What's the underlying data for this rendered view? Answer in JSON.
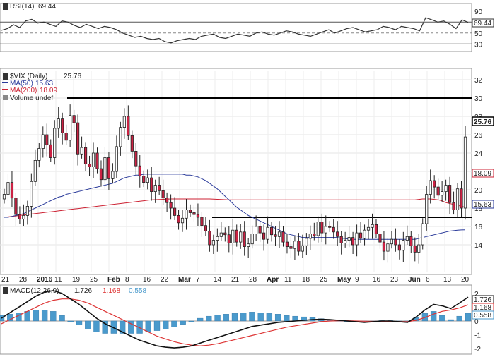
{
  "chart_data": [
    {
      "type": "line",
      "name_label": "RSI(14)",
      "value_label": "69.44",
      "current": 69.44,
      "ylim": [
        20,
        100
      ],
      "ticks": [
        30,
        50,
        70,
        90
      ],
      "reference_levels": [
        30,
        70
      ],
      "values": [
        55,
        58,
        65,
        60,
        72,
        75,
        68,
        70,
        66,
        62,
        72,
        70,
        64,
        60,
        66,
        62,
        58,
        62,
        60,
        56,
        50,
        46,
        42,
        44,
        40,
        38,
        40,
        34,
        32,
        36,
        38,
        40,
        38,
        44,
        46,
        48,
        42,
        40,
        44,
        48,
        46,
        44,
        50,
        52,
        48,
        46,
        50,
        54,
        52,
        48,
        46,
        44,
        48,
        52,
        56,
        50,
        54,
        58,
        60,
        56,
        52,
        54,
        56,
        62,
        60,
        56,
        62,
        60,
        58,
        54,
        78,
        74,
        70,
        72,
        66,
        58,
        74,
        69.44
      ],
      "colors": {
        "line": "#333333",
        "ref": "#555555"
      }
    },
    {
      "type": "candlestick",
      "title": "$VIX (Daily)",
      "title_value": "25.76",
      "ylim": [
        11,
        33
      ],
      "yticks": [
        14,
        16,
        18,
        20,
        22,
        24,
        26,
        28,
        30,
        32
      ],
      "xticks": [
        "21",
        "28",
        "2016",
        "11",
        "19",
        "25",
        "Feb",
        "8",
        "16",
        "22",
        "Mar",
        "7",
        "14",
        "21",
        "28",
        "Apr",
        "11",
        "18",
        "25",
        "May",
        "9",
        "16",
        "23",
        "Jun",
        "6",
        "13",
        "20"
      ],
      "legend": [
        {
          "label": "$VIX (Daily)",
          "value": "25.76",
          "color": "#222222"
        },
        {
          "label": "MA(50)",
          "value": "15.63",
          "color": "#2a3a9a"
        },
        {
          "label": "MA(200)",
          "value": "18.09",
          "color": "#cc2233"
        },
        {
          "label": "Volume undef",
          "value": "",
          "color": "#222222"
        }
      ],
      "last_price": 25.76,
      "last_label": "25.76",
      "ma200_label": "18.09",
      "ma50_label": "15.63",
      "horizontal_lines": [
        30,
        17
      ],
      "closes": [
        19.5,
        20.8,
        19.1,
        17.3,
        16.8,
        17.2,
        18.2,
        20.9,
        23.2,
        24.5,
        26.0,
        24.9,
        23.5,
        26.7,
        27.8,
        26.2,
        25.4,
        28.1,
        27.3,
        23.9,
        24.6,
        22.8,
        22.5,
        24.0,
        22.3,
        21.1,
        23.5,
        21.2,
        22.0,
        24.7,
        26.8,
        28.0,
        25.9,
        24.2,
        22.6,
        21.5,
        20.8,
        21.3,
        19.8,
        20.5,
        19.9,
        19.1,
        18.6,
        18.0,
        17.2,
        16.4,
        16.9,
        17.8,
        17.5,
        17.3,
        17.0,
        16.1,
        15.5,
        14.0,
        14.5,
        14.9,
        15.3,
        15.1,
        14.2,
        15.6,
        14.3,
        15.4,
        13.8,
        14.1,
        15.2,
        16.0,
        15.3,
        14.6,
        15.9,
        15.1,
        14.9,
        15.4,
        14.3,
        13.8,
        13.6,
        14.4,
        13.3,
        13.9,
        14.7,
        15.2,
        15.0,
        16.5,
        15.3,
        16.0,
        15.9,
        15.4,
        14.9,
        14.2,
        14.5,
        14.8,
        14.0,
        15.3,
        14.7,
        15.6,
        15.9,
        16.2,
        15.2,
        14.3,
        13.3,
        14.1,
        14.6,
        14.0,
        13.4,
        14.5,
        14.9,
        13.9,
        13.2,
        14.0,
        16.3,
        19.5,
        21.0,
        20.3,
        19.4,
        19.8,
        20.5,
        18.6,
        17.8,
        20.1,
        18.0,
        25.76
      ],
      "ma50": [
        17.0,
        17.0,
        17.1,
        17.2,
        17.3,
        17.4,
        17.6,
        17.8,
        18.0,
        18.2,
        18.4,
        18.6,
        18.8,
        19.0,
        19.2,
        19.3,
        19.5,
        19.6,
        19.7,
        19.8,
        19.9,
        20.0,
        20.1,
        20.2,
        20.3,
        20.4,
        20.5,
        20.6,
        20.7,
        20.9,
        21.1,
        21.3,
        21.4,
        21.5,
        21.6,
        21.6,
        21.7,
        21.7,
        21.7,
        21.7,
        21.7,
        21.7,
        21.7,
        21.7,
        21.7,
        21.7,
        21.7,
        21.6,
        21.6,
        21.5,
        21.4,
        21.2,
        21.0,
        20.7,
        20.4,
        20.1,
        19.7,
        19.3,
        18.9,
        18.5,
        18.1,
        17.8,
        17.5,
        17.2,
        17.0,
        16.8,
        16.6,
        16.4,
        16.2,
        16.0,
        15.8,
        15.6,
        15.4,
        15.2,
        15.1,
        15.0,
        14.9,
        14.8,
        14.8,
        14.8,
        14.8,
        14.8,
        14.8,
        14.8,
        14.8,
        14.8,
        14.8,
        14.7,
        14.7,
        14.6,
        14.6,
        14.6,
        14.6,
        14.6,
        14.6,
        14.6,
        14.6,
        14.6,
        14.6,
        14.6,
        14.6,
        14.6,
        14.6,
        14.6,
        14.6,
        14.6,
        14.6,
        14.7,
        14.8,
        14.9,
        15.0,
        15.1,
        15.2,
        15.3,
        15.4,
        15.5,
        15.55,
        15.6,
        15.62,
        15.63
      ],
      "ma200": [
        17.0,
        17.05,
        17.1,
        17.15,
        17.2,
        17.25,
        17.3,
        17.35,
        17.4,
        17.45,
        17.5,
        17.55,
        17.6,
        17.65,
        17.7,
        17.75,
        17.8,
        17.85,
        17.9,
        17.95,
        18.0,
        18.05,
        18.1,
        18.15,
        18.2,
        18.25,
        18.3,
        18.35,
        18.4,
        18.45,
        18.5,
        18.55,
        18.6,
        18.65,
        18.7,
        18.75,
        18.8,
        18.85,
        18.9,
        18.92,
        18.94,
        18.96,
        18.98,
        19.0,
        19.0,
        19.0,
        19.0,
        19.0,
        19.0,
        19.0,
        19.0,
        19.0,
        19.0,
        19.0,
        18.98,
        18.96,
        18.94,
        18.92,
        18.9,
        18.9,
        18.9,
        18.9,
        18.9,
        18.9,
        18.9,
        18.9,
        18.9,
        18.9,
        18.9,
        18.9,
        18.9,
        18.9,
        18.9,
        18.9,
        18.9,
        18.9,
        18.9,
        18.9,
        18.9,
        18.9,
        18.9,
        18.9,
        18.9,
        18.9,
        18.9,
        18.9,
        18.9,
        18.9,
        18.9,
        18.9,
        18.9,
        18.9,
        18.9,
        18.9,
        18.9,
        18.9,
        18.9,
        18.9,
        18.9,
        18.9,
        18.9,
        18.9,
        18.9,
        18.9,
        18.9,
        18.9,
        18.9,
        18.95,
        19.0,
        19.0,
        19.0,
        18.95,
        18.9,
        18.8,
        18.6,
        18.5,
        18.4,
        18.3,
        18.2,
        18.09
      ],
      "colors": {
        "up": "#ffffff",
        "down": "#cc2244",
        "wick": "#222222",
        "ma50": "#2a3a9a",
        "ma200": "#cc2233",
        "hline": "#000000"
      }
    },
    {
      "type": "line",
      "title": "MACD(12,26,9)",
      "macd_label": "1.726",
      "signal_label": "1.168",
      "hist_label": "0.558",
      "ylim": [
        -2.2,
        2.4
      ],
      "yticks": [
        -2,
        -1,
        0,
        1,
        2
      ],
      "macd": [
        0.2,
        0.6,
        1.0,
        1.4,
        1.8,
        2.1,
        2.2,
        2.0,
        1.6,
        1.2,
        0.7,
        0.2,
        -0.2,
        -0.5,
        -0.8,
        -1.1,
        -1.4,
        -1.6,
        -1.8,
        -1.9,
        -1.95,
        -1.9,
        -1.8,
        -1.6,
        -1.4,
        -1.2,
        -1.0,
        -0.8,
        -0.6,
        -0.4,
        -0.3,
        -0.2,
        -0.1,
        -0.05,
        0.0,
        0.05,
        0.1,
        0.12,
        0.1,
        0.05,
        0.0,
        -0.05,
        -0.1,
        -0.05,
        0.0,
        0.0,
        -0.05,
        -0.1,
        0.3,
        0.8,
        1.2,
        1.1,
        0.9,
        1.3,
        1.726
      ],
      "signal": [
        -0.2,
        0.1,
        0.4,
        0.7,
        1.0,
        1.3,
        1.5,
        1.6,
        1.6,
        1.5,
        1.3,
        1.0,
        0.7,
        0.4,
        0.1,
        -0.2,
        -0.5,
        -0.8,
        -1.1,
        -1.3,
        -1.5,
        -1.65,
        -1.75,
        -1.8,
        -1.75,
        -1.65,
        -1.5,
        -1.35,
        -1.2,
        -1.05,
        -0.9,
        -0.75,
        -0.6,
        -0.45,
        -0.35,
        -0.25,
        -0.15,
        -0.05,
        0.0,
        0.02,
        0.02,
        0.0,
        -0.02,
        -0.03,
        -0.03,
        -0.03,
        -0.04,
        -0.05,
        0.05,
        0.25,
        0.5,
        0.7,
        0.8,
        0.95,
        1.168
      ],
      "colors": {
        "macd": "#111111",
        "signal": "#dd3333",
        "hist": "#4a9acc"
      }
    }
  ]
}
